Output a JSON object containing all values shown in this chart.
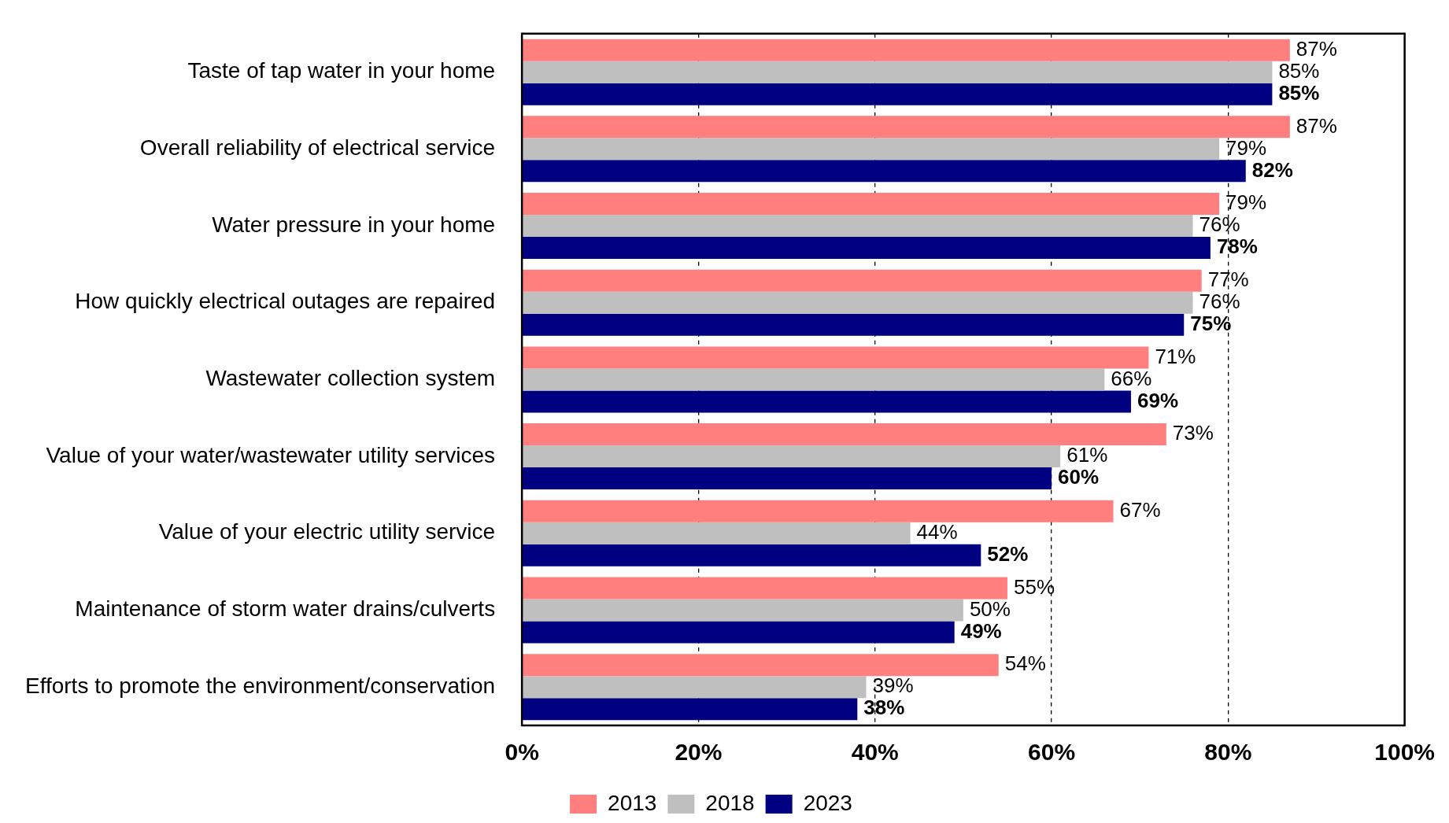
{
  "chart_data": {
    "type": "bar",
    "orientation": "horizontal",
    "categories": [
      "Taste of tap water in your home",
      "Overall reliability of electrical service",
      "Water pressure in your home",
      "How quickly electrical outages are repaired",
      "Wastewater collection system",
      "Value of your water/wastewater utility services",
      "Value of your electric utility service",
      "Maintenance of storm water drains/culverts",
      "Efforts to promote the environment/conservation"
    ],
    "series": [
      {
        "name": "2013",
        "color": "#ff7f7f",
        "values": [
          87,
          87,
          79,
          77,
          71,
          73,
          67,
          55,
          54
        ],
        "value_labels": [
          "87%",
          "87%",
          "79%",
          "77%",
          "71%",
          "73%",
          "67%",
          "55%",
          "54%"
        ]
      },
      {
        "name": "2018",
        "color": "#bfbfbf",
        "values": [
          85,
          79,
          76,
          76,
          66,
          61,
          44,
          50,
          39
        ],
        "value_labels": [
          "85%",
          "79%",
          "76%",
          "76%",
          "66%",
          "61%",
          "44%",
          "50%",
          "39%"
        ]
      },
      {
        "name": "2023",
        "color": "#000080",
        "values": [
          85,
          82,
          78,
          75,
          69,
          60,
          52,
          49,
          38
        ],
        "value_labels": [
          "85%",
          "82%",
          "78%",
          "75%",
          "69%",
          "60%",
          "52%",
          "49%",
          "38%"
        ]
      }
    ],
    "xlim": [
      0,
      100
    ],
    "xticks": [
      {
        "value": 0,
        "label": "0%"
      },
      {
        "value": 20,
        "label": "20%"
      },
      {
        "value": 40,
        "label": "40%"
      },
      {
        "value": 60,
        "label": "60%"
      },
      {
        "value": 80,
        "label": "80%"
      },
      {
        "value": 100,
        "label": "100%"
      }
    ],
    "grid": "x",
    "legend": "bottom"
  }
}
